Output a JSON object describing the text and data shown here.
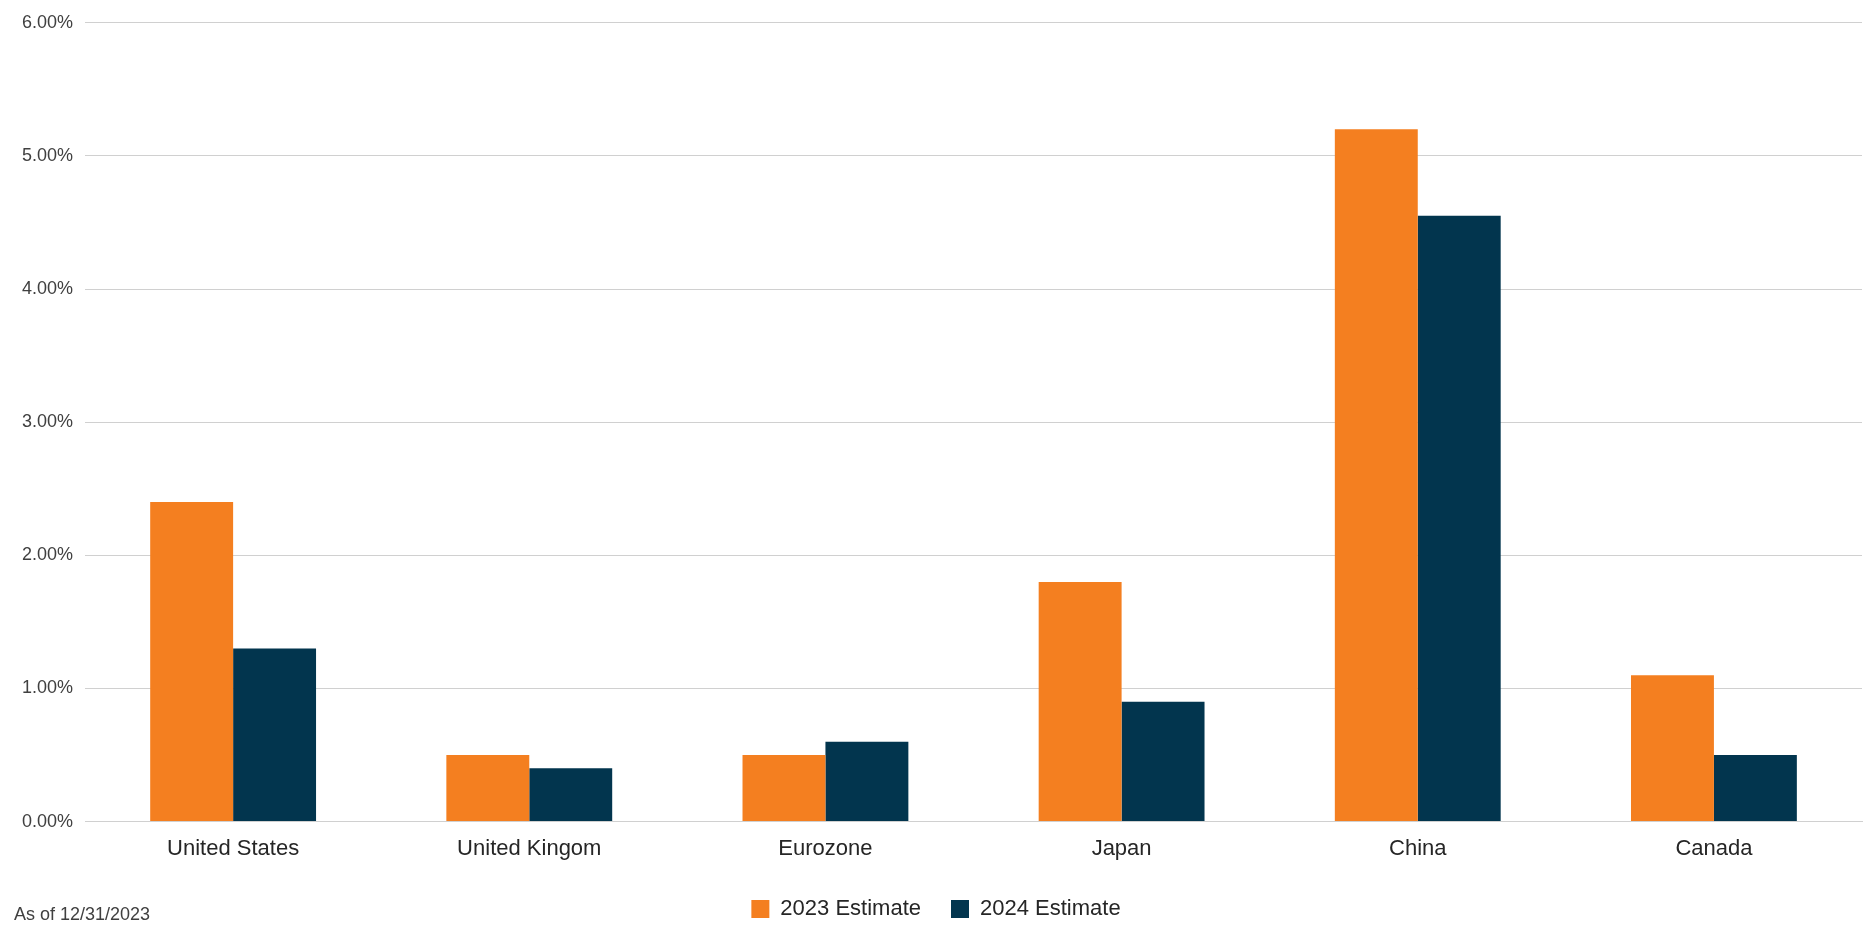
{
  "chart_data": {
    "type": "bar",
    "categories": [
      "United States",
      "United Kingom",
      "Eurozone",
      "Japan",
      "China",
      "Canada"
    ],
    "series": [
      {
        "name": "2023 Estimate",
        "color": "#f47f20",
        "values": [
          2.4,
          0.5,
          0.5,
          1.8,
          5.2,
          1.1
        ]
      },
      {
        "name": "2024 Estimate",
        "color": "#02354e",
        "values": [
          1.3,
          0.4,
          0.6,
          0.9,
          4.55,
          0.5
        ]
      }
    ],
    "ylim": [
      0,
      6
    ],
    "yticks": [
      {
        "value": 0,
        "label": "0.00%"
      },
      {
        "value": 1,
        "label": "1.00%"
      },
      {
        "value": 2,
        "label": "2.00%"
      },
      {
        "value": 3,
        "label": "3.00%"
      },
      {
        "value": 4,
        "label": "4.00%"
      },
      {
        "value": 5,
        "label": "5.00%"
      },
      {
        "value": 6,
        "label": "6.00%"
      }
    ],
    "grid": "y",
    "legend": "bottom",
    "annotations": [
      "As of 12/31/2023"
    ]
  }
}
